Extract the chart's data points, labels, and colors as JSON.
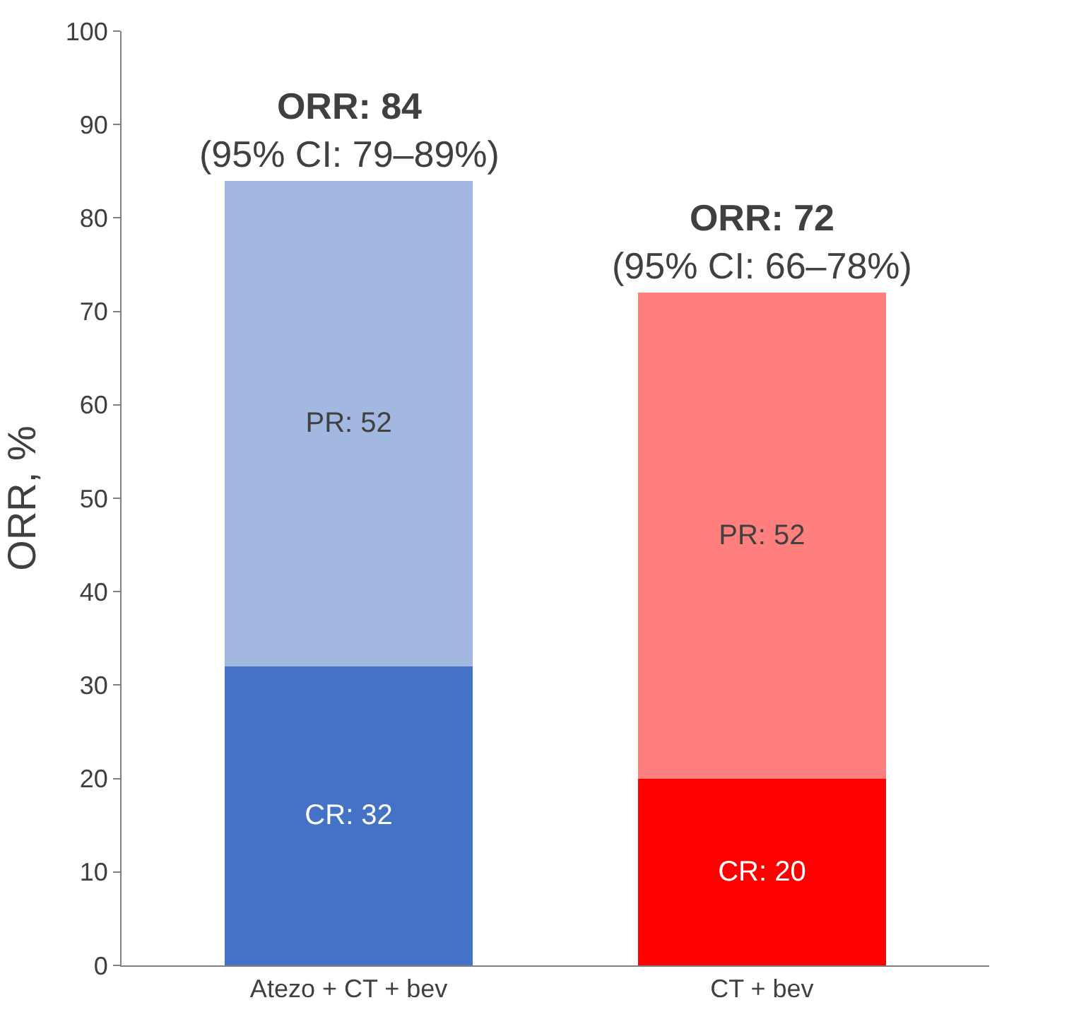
{
  "chart_data": {
    "type": "bar",
    "stacked": true,
    "categories": [
      "Atezo + CT + bev",
      "CT + bev"
    ],
    "ylabel": "ORR, %",
    "series": [
      {
        "colors": [
          "#4472c4",
          "#ff0000"
        ],
        "values": [
          32,
          20
        ],
        "value_labels": [
          "CR: 32",
          "CR: 20"
        ]
      },
      {
        "colors": [
          "#a3b8e0",
          "#ff7f7f"
        ],
        "values": [
          52,
          52
        ],
        "value_labels": [
          "PR: 52",
          "PR: 52"
        ]
      }
    ],
    "totals": [
      "ORR: 84\n(95% CI: 79–89%)",
      "ORR: 72\n(95% CI: 66–78%)"
    ],
    "ylim": [
      0,
      100
    ],
    "yticks": [
      0,
      10,
      20,
      30,
      40,
      50,
      60,
      70,
      80,
      90,
      100
    ]
  }
}
